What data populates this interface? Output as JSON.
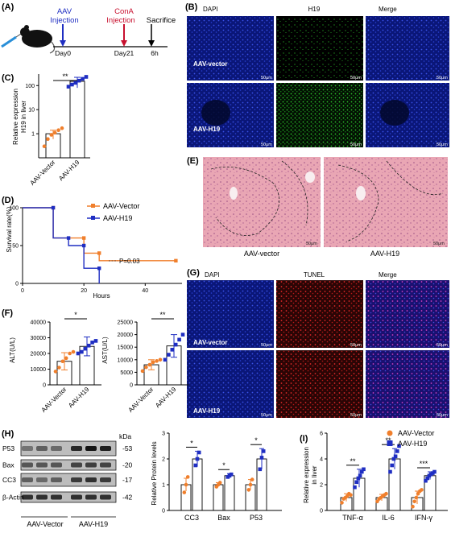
{
  "panels": {
    "a": "(A)",
    "b": "(B)",
    "c": "(C)",
    "d": "(D)",
    "e": "(E)",
    "f": "(F)",
    "g": "(G)",
    "h": "(H)",
    "i": "(I)"
  },
  "timeline": {
    "aav_injection": [
      "AAV",
      "Injection"
    ],
    "cona_injection": [
      "ConA",
      "Injection"
    ],
    "sacrifice": "Sacrifice",
    "day0": "Day0",
    "day21": "Day21",
    "h6": "6h"
  },
  "colors": {
    "vector": "#f07f2c",
    "h19": "#1f2ec2",
    "aav_arrow": "#1f2ec2",
    "cona_arrow": "#c8102e",
    "dapi_bg": "#0c1a8a",
    "tunel": "#c81a1a",
    "h19_stain": "#22aa22"
  },
  "icons": {
    "mouse": "mouse-icon",
    "syringe": "syringe-icon"
  },
  "panel_b": {
    "headers": [
      "DAPI",
      "H19",
      "Merge"
    ],
    "row_labels": [
      "AAV-vector",
      "AAV-H19"
    ],
    "scale": "50μm"
  },
  "panel_e": {
    "labels": [
      "AAV-vector",
      "AAV-H19"
    ],
    "scale": "50μm"
  },
  "panel_g": {
    "headers": [
      "DAPI",
      "TUNEL",
      "Merge"
    ],
    "row_labels": [
      "AAV-vector",
      "AAV-H19"
    ],
    "scale": "50μm"
  },
  "panel_h_blot": {
    "kda_label": "kDa",
    "proteins": [
      "P53",
      "Bax",
      "CC3",
      "β-Actin"
    ],
    "kda": [
      "53",
      "20",
      "17",
      "42"
    ],
    "groups": [
      "AAV-Vector",
      "AAV-H19"
    ]
  },
  "chart_data": [
    {
      "panel": "C",
      "type": "bar",
      "ylabel": [
        "Relative expression",
        "H19 in liver"
      ],
      "categories": [
        "AAV-Vector",
        "AAV-H19"
      ],
      "values": [
        1.0,
        150
      ],
      "errors": [
        0.4,
        70
      ],
      "points": [
        [
          0.3,
          0.6,
          0.9,
          1.1,
          1.4,
          1.7
        ],
        [
          90,
          110,
          130,
          160,
          190,
          230
        ]
      ],
      "ylim": [
        0,
        300
      ],
      "yscale": "log",
      "yticks": [
        "1",
        "10",
        "100"
      ],
      "significance": "**"
    },
    {
      "panel": "D",
      "type": "line",
      "xlabel": "Hours",
      "ylabel": "Survival rate(%)",
      "xticks": [
        0,
        20,
        40
      ],
      "yticks": [
        0,
        50,
        100
      ],
      "xlim": [
        0,
        52
      ],
      "ylim": [
        0,
        100
      ],
      "series": [
        {
          "name": "AAV-Vector",
          "x": [
            0,
            10,
            10,
            20,
            20,
            25,
            25,
            50
          ],
          "y": [
            100,
            100,
            60,
            60,
            40,
            40,
            30,
            30
          ]
        },
        {
          "name": "AAV-H19",
          "x": [
            0,
            10,
            10,
            15,
            15,
            20,
            20,
            25,
            25
          ],
          "y": [
            100,
            100,
            60,
            60,
            50,
            50,
            20,
            20,
            0
          ]
        }
      ],
      "annotation": "P=0.03"
    },
    {
      "panel": "F-ALT",
      "type": "bar",
      "ylabel": "ALT(U/L)",
      "categories": [
        "AAV-Vector",
        "AAV-H19"
      ],
      "values": [
        15000,
        24500
      ],
      "errors": [
        5500,
        6000
      ],
      "points": [
        [
          8500,
          11000,
          15000,
          17000,
          20000,
          21000
        ],
        [
          20000,
          21000,
          23000,
          25000,
          27000,
          28000
        ]
      ],
      "ylim": [
        0,
        40000
      ],
      "yticks": [
        "0",
        "10000",
        "20000",
        "30000",
        "40000"
      ],
      "significance": "*"
    },
    {
      "panel": "F-AST",
      "type": "bar",
      "ylabel": "AST(U/L)",
      "categories": [
        "AAV-Vector",
        "AAV-H19"
      ],
      "values": [
        8000,
        15500
      ],
      "errors": [
        2000,
        4500
      ],
      "points": [
        [
          5500,
          7000,
          8000,
          9000,
          9500,
          10000
        ],
        [
          10000,
          12000,
          14000,
          16000,
          18000,
          20000
        ]
      ],
      "ylim": [
        0,
        25000
      ],
      "yticks": [
        "0",
        "5000",
        "10000",
        "15000",
        "20000",
        "25000"
      ],
      "significance": "**"
    },
    {
      "panel": "H-quant",
      "type": "bar",
      "ylabel": "Relative Protein levels",
      "categories": [
        "CC3",
        "Bax",
        "P53"
      ],
      "series": [
        {
          "name": "AAV-Vector",
          "values": [
            1.0,
            1.0,
            1.0
          ],
          "errors": [
            0.25,
            0.08,
            0.2
          ],
          "points": [
            [
              0.7,
              1.0,
              1.3
            ],
            [
              0.92,
              1.0,
              1.08
            ],
            [
              0.8,
              1.0,
              1.2
            ]
          ]
        },
        {
          "name": "AAV-H19",
          "values": [
            2.0,
            1.35,
            2.0
          ],
          "errors": [
            0.3,
            0.08,
            0.4
          ],
          "points": [
            [
              1.75,
              2.0,
              2.25
            ],
            [
              1.3,
              1.35,
              1.4
            ],
            [
              1.6,
              2.05,
              2.3
            ]
          ]
        }
      ],
      "ylim": [
        0,
        3
      ],
      "yticks": [
        "0",
        "1",
        "2",
        "3"
      ],
      "significance": [
        "*",
        "*",
        "*"
      ]
    },
    {
      "panel": "I",
      "type": "bar",
      "ylabel": [
        "Relative expression",
        "in liver"
      ],
      "categories": [
        "TNF-α",
        "IL-6",
        "IFN-γ"
      ],
      "series": [
        {
          "name": "AAV-Vector",
          "values": [
            1.0,
            1.0,
            1.0
          ],
          "errors": [
            0.3,
            0.25,
            0.5
          ],
          "points": [
            [
              0.6,
              0.9,
              1.0,
              1.1,
              1.3,
              1.2
            ],
            [
              0.7,
              0.9,
              1.0,
              1.1,
              1.2,
              1.3
            ],
            [
              0.3,
              0.7,
              1.0,
              1.3,
              1.5,
              1.6
            ]
          ]
        },
        {
          "name": "AAV-H19",
          "values": [
            2.5,
            4.0,
            2.7
          ],
          "errors": [
            0.7,
            0.8,
            0.3
          ],
          "points": [
            [
              1.8,
              2.2,
              2.5,
              2.7,
              3.0,
              3.2
            ],
            [
              3.0,
              3.5,
              4.0,
              4.2,
              4.6,
              5.0
            ],
            [
              2.3,
              2.5,
              2.7,
              2.8,
              2.9,
              3.0
            ]
          ]
        }
      ],
      "ylim": [
        0,
        6
      ],
      "yticks": [
        "0",
        "2",
        "4",
        "6"
      ],
      "significance": [
        "**",
        "**",
        "***"
      ]
    }
  ]
}
